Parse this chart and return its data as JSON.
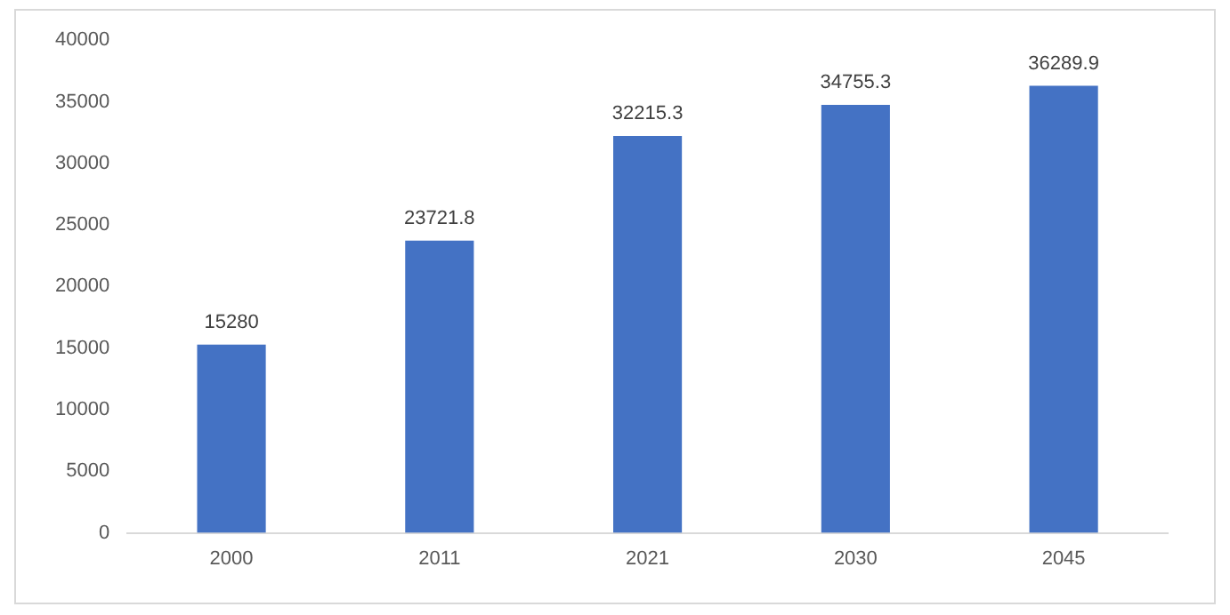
{
  "chart_data": {
    "type": "bar",
    "categories": [
      "2000",
      "2011",
      "2021",
      "2030",
      "2045"
    ],
    "values": [
      15280,
      23721.8,
      32215.3,
      34755.3,
      36289.9
    ],
    "color": "#4472c4",
    "ylim": [
      0,
      40000
    ],
    "yticks": [
      0,
      5000,
      10000,
      15000,
      20000,
      25000,
      30000,
      35000,
      40000
    ],
    "grid": false,
    "data_labels": true
  }
}
